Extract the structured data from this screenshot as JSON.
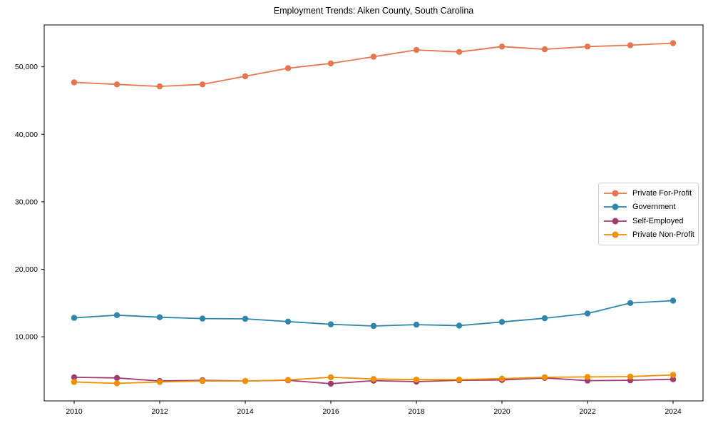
{
  "title": "Employment Trends: Aiken County, South Carolina",
  "chart_data": {
    "type": "line",
    "title": "Employment Trends: Aiken County, South Carolina",
    "xlabel": "",
    "ylabel": "",
    "x": [
      2010,
      2011,
      2012,
      2013,
      2014,
      2015,
      2016,
      2017,
      2018,
      2019,
      2020,
      2021,
      2022,
      2023,
      2024
    ],
    "series": [
      {
        "name": "Private For-Profit",
        "color": "#E8764D",
        "values": [
          47700,
          47400,
          47100,
          47400,
          48600,
          49800,
          50500,
          51500,
          52500,
          52200,
          53000,
          52600,
          53000,
          53200,
          53500
        ]
      },
      {
        "name": "Government",
        "color": "#2E86AB",
        "values": [
          12800,
          13200,
          12900,
          12700,
          12650,
          12250,
          11850,
          11600,
          11800,
          11650,
          12200,
          12750,
          13450,
          15000,
          15350
        ]
      },
      {
        "name": "Self-Employed",
        "color": "#A23B72",
        "values": [
          4000,
          3900,
          3450,
          3550,
          3450,
          3550,
          3050,
          3500,
          3350,
          3550,
          3600,
          3900,
          3500,
          3550,
          3700
        ]
      },
      {
        "name": "Private Non-Profit",
        "color": "#F18F01",
        "values": [
          3300,
          3100,
          3300,
          3450,
          3450,
          3600,
          4000,
          3750,
          3650,
          3650,
          3800,
          4000,
          4050,
          4100,
          4350
        ]
      }
    ],
    "xticks": [
      2010,
      2012,
      2014,
      2016,
      2018,
      2020,
      2022,
      2024
    ],
    "yticks": [
      10000,
      20000,
      30000,
      40000,
      50000
    ],
    "ytick_labels": [
      "10,000",
      "20,000",
      "30,000",
      "40,000",
      "50,000"
    ],
    "xlim": [
      2009.3,
      2024.7
    ],
    "ylim": [
      500,
      56200
    ],
    "grid": false,
    "legend_position": "center right",
    "marker": "o"
  }
}
